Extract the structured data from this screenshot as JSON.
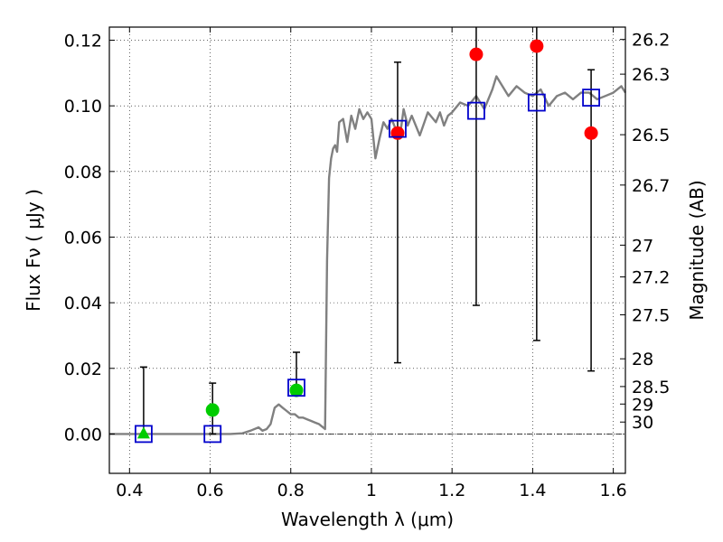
{
  "chart_data": {
    "type": "scatter",
    "xlabel": "Wavelength  λ (μm)",
    "ylabel": "Flux  Fν  ( μJy )",
    "y2label": "Magnitude (AB)",
    "xlim": [
      0.35,
      1.63
    ],
    "ylim": [
      -0.012,
      0.124
    ],
    "grid": true,
    "x_ticks": [
      0.4,
      0.6,
      0.8,
      1.0,
      1.2,
      1.4,
      1.6
    ],
    "x_tick_labels": [
      "0.4",
      "0.6",
      "0.8",
      "1",
      "1.2",
      "1.4",
      "1.6"
    ],
    "y_ticks": [
      0.0,
      0.02,
      0.04,
      0.06,
      0.08,
      0.1,
      0.12
    ],
    "y_tick_labels": [
      "0.00",
      "0.02",
      "0.04",
      "0.06",
      "0.08",
      "0.10",
      "0.12"
    ],
    "mag_ticks": [
      26.2,
      26.3,
      26.5,
      26.7,
      27,
      27.2,
      27.5,
      28,
      28.5,
      29,
      30
    ],
    "mag_tick_labels": [
      "26.2",
      "26.3",
      "26.5",
      "26.7",
      "27",
      "27.2",
      "27.5",
      "28",
      "28.5",
      "29",
      "30"
    ],
    "colors": {
      "model": "#808080",
      "observed": "#ff0000",
      "observed_green": "#00cc00",
      "model_photometry": "#0000cc",
      "errorbar": "#000000"
    },
    "series": [
      {
        "kind": "model_spectrum",
        "x": [
          0.35,
          0.45,
          0.55,
          0.6,
          0.65,
          0.68,
          0.7,
          0.72,
          0.73,
          0.74,
          0.75,
          0.76,
          0.77,
          0.78,
          0.79,
          0.8,
          0.81,
          0.82,
          0.83,
          0.84,
          0.85,
          0.86,
          0.87,
          0.875,
          0.88,
          0.885,
          0.89,
          0.895,
          0.9,
          0.905,
          0.91,
          0.915,
          0.92,
          0.93,
          0.94,
          0.95,
          0.96,
          0.97,
          0.98,
          0.99,
          1.0,
          1.01,
          1.02,
          1.03,
          1.04,
          1.05,
          1.06,
          1.07,
          1.08,
          1.09,
          1.1,
          1.12,
          1.14,
          1.16,
          1.17,
          1.18,
          1.19,
          1.2,
          1.22,
          1.24,
          1.26,
          1.28,
          1.3,
          1.31,
          1.32,
          1.34,
          1.36,
          1.38,
          1.4,
          1.42,
          1.44,
          1.46,
          1.48,
          1.5,
          1.52,
          1.54,
          1.56,
          1.58,
          1.6,
          1.62,
          1.63
        ],
        "y": [
          0.0,
          0.0,
          0.0,
          0.0,
          0.0,
          0.0002,
          0.001,
          0.002,
          0.001,
          0.0015,
          0.003,
          0.008,
          0.009,
          0.008,
          0.007,
          0.006,
          0.006,
          0.005,
          0.005,
          0.0045,
          0.004,
          0.0035,
          0.003,
          0.0025,
          0.002,
          0.0015,
          0.053,
          0.078,
          0.084,
          0.087,
          0.088,
          0.086,
          0.095,
          0.096,
          0.089,
          0.097,
          0.093,
          0.099,
          0.096,
          0.098,
          0.096,
          0.084,
          0.09,
          0.095,
          0.093,
          0.096,
          0.093,
          0.09,
          0.099,
          0.094,
          0.097,
          0.091,
          0.098,
          0.095,
          0.098,
          0.094,
          0.097,
          0.098,
          0.101,
          0.1,
          0.103,
          0.099,
          0.105,
          0.109,
          0.107,
          0.103,
          0.106,
          0.104,
          0.103,
          0.105,
          0.1,
          0.103,
          0.104,
          0.102,
          0.104,
          0.104,
          0.102,
          0.103,
          0.104,
          0.106,
          0.104
        ]
      },
      {
        "kind": "observed_errorbars",
        "x": [
          0.435,
          0.606,
          0.814,
          1.065,
          1.26,
          1.41,
          1.545
        ],
        "y": [
          0.0,
          0.0073,
          0.0133,
          0.0917,
          0.1157,
          0.1182,
          0.0917
        ],
        "yerr_low": [
          0.0,
          0.0,
          0.0118,
          0.0217,
          0.0392,
          0.0285,
          0.0192
        ],
        "yerr_high": [
          0.0204,
          0.0155,
          0.0249,
          0.1133,
          0.126,
          0.126,
          0.111
        ],
        "markers": [
          "triangle",
          "circle",
          "circle",
          "circle",
          "circle",
          "circle",
          "circle"
        ],
        "marker_colors": [
          "observed_green",
          "observed_green",
          "observed_green",
          "observed",
          "observed",
          "observed",
          "observed"
        ]
      },
      {
        "kind": "model_photometry",
        "x": [
          0.435,
          0.606,
          0.814,
          1.065,
          1.26,
          1.41,
          1.545
        ],
        "y": [
          0.0,
          0.0,
          0.0141,
          0.093,
          0.0985,
          0.101,
          0.1025
        ],
        "marker": "open-square"
      }
    ]
  }
}
